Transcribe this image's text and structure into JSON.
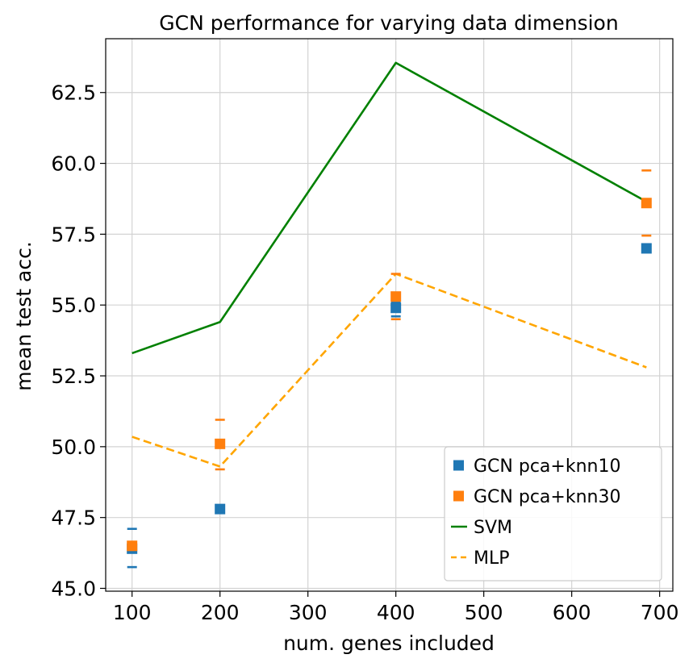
{
  "chart_data": {
    "type": "scatter",
    "title": "GCN performance for varying data dimension",
    "xlabel": "num. genes included",
    "ylabel": "mean test acc.",
    "xlim": [
      70,
      715
    ],
    "ylim": [
      44.9,
      64.4
    ],
    "xticks": [
      100,
      200,
      300,
      400,
      500,
      600,
      700
    ],
    "xtick_labels": [
      "100",
      "200",
      "300",
      "400",
      "500",
      "600",
      "700"
    ],
    "yticks": [
      45.0,
      47.5,
      50.0,
      52.5,
      55.0,
      57.5,
      60.0,
      62.5
    ],
    "ytick_labels": [
      "45.0",
      "47.5",
      "50.0",
      "52.5",
      "55.0",
      "57.5",
      "60.0",
      "62.5"
    ],
    "grid": true,
    "legend_position": "lower-right",
    "series": [
      {
        "name": "GCN pca+knn10",
        "kind": "scatter-errorbar",
        "color": "#1f77b4",
        "marker": "square",
        "x": [
          100,
          200,
          400,
          685
        ],
        "y": [
          46.4,
          47.8,
          54.9,
          57.0
        ],
        "err_low": [
          45.75,
          47.72,
          54.6,
          56.96
        ],
        "err_high": [
          47.1,
          47.88,
          55.1,
          57.05
        ]
      },
      {
        "name": "GCN pca+knn30",
        "kind": "scatter-errorbar",
        "color": "#ff7f0e",
        "marker": "square",
        "x": [
          100,
          200,
          400,
          685
        ],
        "y": [
          46.5,
          50.1,
          55.3,
          58.6
        ],
        "err_low": [
          46.4,
          49.2,
          54.5,
          57.45
        ],
        "err_high": [
          46.6,
          50.95,
          56.1,
          59.75
        ]
      },
      {
        "name": "SVM",
        "kind": "line",
        "color": "#008000",
        "dash": "solid",
        "x": [
          100,
          200,
          400,
          685
        ],
        "y": [
          53.3,
          54.4,
          63.55,
          58.65
        ]
      },
      {
        "name": "MLP",
        "kind": "line",
        "color": "#ffa500",
        "dash": "dashed",
        "x": [
          100,
          200,
          400,
          685
        ],
        "y": [
          50.35,
          49.3,
          56.1,
          52.8
        ]
      }
    ]
  }
}
